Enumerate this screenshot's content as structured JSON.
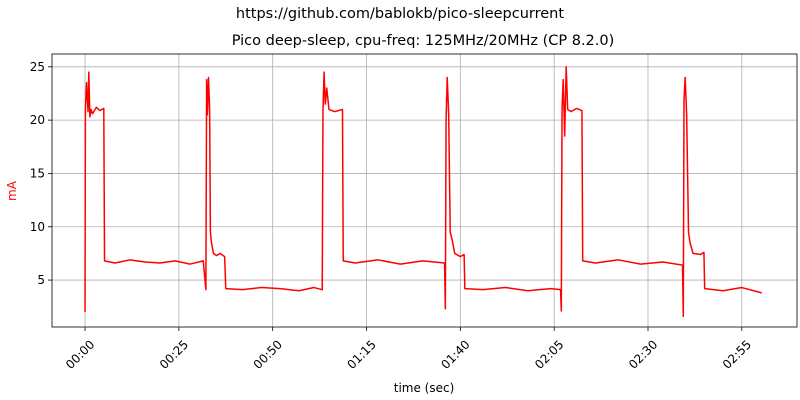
{
  "chart_data": {
    "type": "line",
    "suptitle": "https://github.com/bablokb/pico-sleepcurrent",
    "title": "Pico deep-sleep, cpu-freq: 125MHz/20MHz (CP 8.2.0)",
    "x_label": "time (sec)",
    "y_label": "mA",
    "color": "#ff0000",
    "grid": true,
    "x": [
      0,
      0.1,
      0.4,
      0.8,
      1.0,
      1.3,
      1.6,
      2.0,
      3,
      4,
      5.0,
      5.2,
      8,
      12,
      16,
      20,
      24,
      28,
      31.5,
      32.2,
      32.4,
      32.6,
      32.9,
      33.2,
      33.4,
      33.7,
      34.2,
      35,
      36,
      37.2,
      37.5,
      42,
      47,
      52,
      57,
      61,
      63.2,
      63.4,
      63.7,
      64.0,
      64.4,
      65,
      66.5,
      68.6,
      68.8,
      72,
      78,
      84,
      90,
      95.8,
      96.0,
      96.2,
      96.5,
      96.9,
      97.3,
      97.8,
      98.5,
      100,
      101,
      101.2,
      106,
      112,
      118,
      124,
      126.7,
      126.9,
      127.1,
      127.4,
      127.8,
      128.2,
      128.6,
      129.5,
      131,
      132.4,
      132.6,
      136,
      142,
      148,
      154,
      159.2,
      159.4,
      159.6,
      159.9,
      160.3,
      160.8,
      161.2,
      162,
      164,
      164.9,
      165.1,
      170,
      175,
      180.3
    ],
    "values": [
      2.0,
      21,
      23.5,
      20.8,
      24.5,
      20.3,
      21,
      20.6,
      21.2,
      20.9,
      21.1,
      6.8,
      6.6,
      6.9,
      6.7,
      6.6,
      6.8,
      6.5,
      6.8,
      4.1,
      23.8,
      20.5,
      24,
      21,
      9.5,
      8.5,
      7.5,
      7.3,
      7.5,
      7.2,
      4.2,
      4.1,
      4.3,
      4.2,
      4.0,
      4.3,
      4.1,
      21,
      24.5,
      21.5,
      23,
      21,
      20.8,
      21,
      6.8,
      6.6,
      6.9,
      6.5,
      6.8,
      6.6,
      2.3,
      20,
      24,
      20.5,
      9.5,
      8.8,
      7.5,
      7.2,
      7.4,
      4.2,
      4.1,
      4.3,
      4.0,
      4.2,
      4.1,
      2.1,
      21,
      23.8,
      18.5,
      25,
      21,
      20.8,
      21.1,
      20.9,
      6.8,
      6.6,
      6.9,
      6.5,
      6.7,
      6.4,
      1.6,
      22,
      24,
      20.5,
      9.5,
      8.5,
      7.5,
      7.4,
      7.6,
      4.2,
      4.0,
      4.3,
      3.8
    ],
    "xlim": [
      -8.8,
      189.7
    ],
    "ylim": [
      0.6,
      26.2
    ],
    "xticks": [
      {
        "value": 0,
        "label": "00:00"
      },
      {
        "value": 25,
        "label": "00:25"
      },
      {
        "value": 50,
        "label": "00:50"
      },
      {
        "value": 75,
        "label": "01:15"
      },
      {
        "value": 100,
        "label": "01:40"
      },
      {
        "value": 125,
        "label": "02:05"
      },
      {
        "value": 150,
        "label": "02:30"
      },
      {
        "value": 175,
        "label": "02:55"
      }
    ],
    "yticks": [
      5,
      10,
      15,
      20,
      25
    ]
  }
}
